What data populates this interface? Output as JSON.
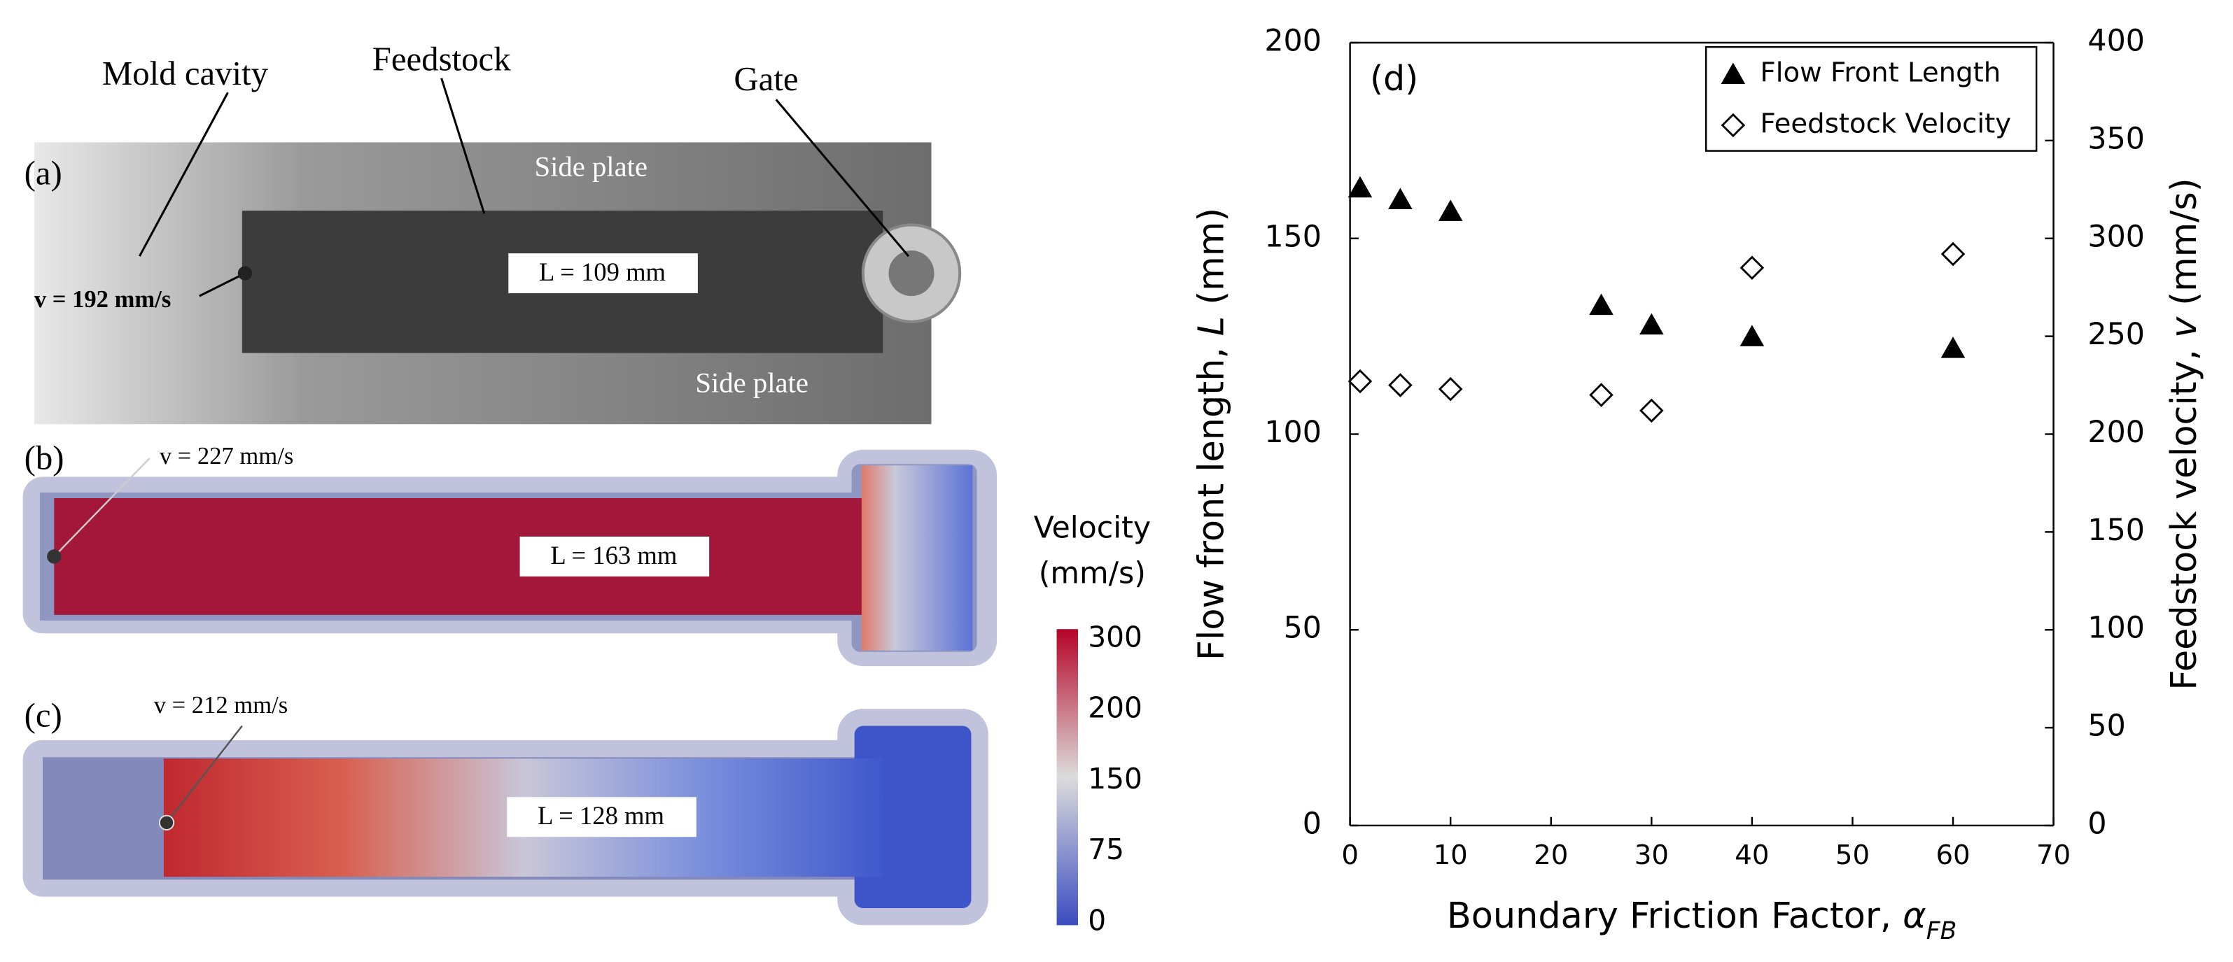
{
  "panels": {
    "a": {
      "label": "(a)",
      "mold": "Mold cavity",
      "feedstock": "Feedstock",
      "gate": "Gate",
      "side_top": "Side plate",
      "side_bottom": "Side plate",
      "velocity": "v = 192 mm/s",
      "length": "L = 109 mm"
    },
    "b": {
      "label": "(b)",
      "velocity": "v = 227 mm/s",
      "length": "L = 163 mm"
    },
    "c": {
      "label": "(c)",
      "velocity": "v = 212 mm/s",
      "length": "L = 128 mm"
    },
    "colorbar": {
      "title": [
        "Velocity",
        "(mm/s)"
      ],
      "ticks": [
        300,
        200,
        150,
        75,
        0
      ]
    }
  },
  "chart_data": {
    "type": "scatter",
    "panel_label": "(d)",
    "xlabel": [
      "Boundary Friction Factor,  ",
      "α",
      "FB"
    ],
    "ylabel": [
      "Flow front length, ",
      "L",
      " (mm)"
    ],
    "y2label": [
      "Feedstock velocity, ",
      "v",
      " (mm/s)"
    ],
    "xlim": [
      0,
      70
    ],
    "xticks": [
      0,
      10,
      20,
      30,
      40,
      50,
      60,
      70
    ],
    "ylim": [
      0,
      200
    ],
    "yticks": [
      0,
      50,
      100,
      150,
      200
    ],
    "y2lim": [
      0,
      400
    ],
    "y2ticks": [
      0,
      50,
      100,
      150,
      200,
      250,
      300,
      350,
      400
    ],
    "legend": "upper right",
    "grid": false,
    "series": [
      {
        "name": "Flow Front Length",
        "color": "#000000",
        "marker": "triangle",
        "x": [
          1,
          5,
          10,
          25,
          30,
          40,
          60
        ],
        "values": [
          163,
          160,
          157,
          133,
          128,
          125,
          122
        ]
      },
      {
        "name": "Feedstock Velocity",
        "color": "#000000",
        "marker": "diamond",
        "axis": "y2",
        "x": [
          1,
          5,
          10,
          25,
          30,
          40,
          60
        ],
        "values": [
          227,
          225,
          223,
          220,
          212,
          285,
          292
        ]
      }
    ]
  }
}
